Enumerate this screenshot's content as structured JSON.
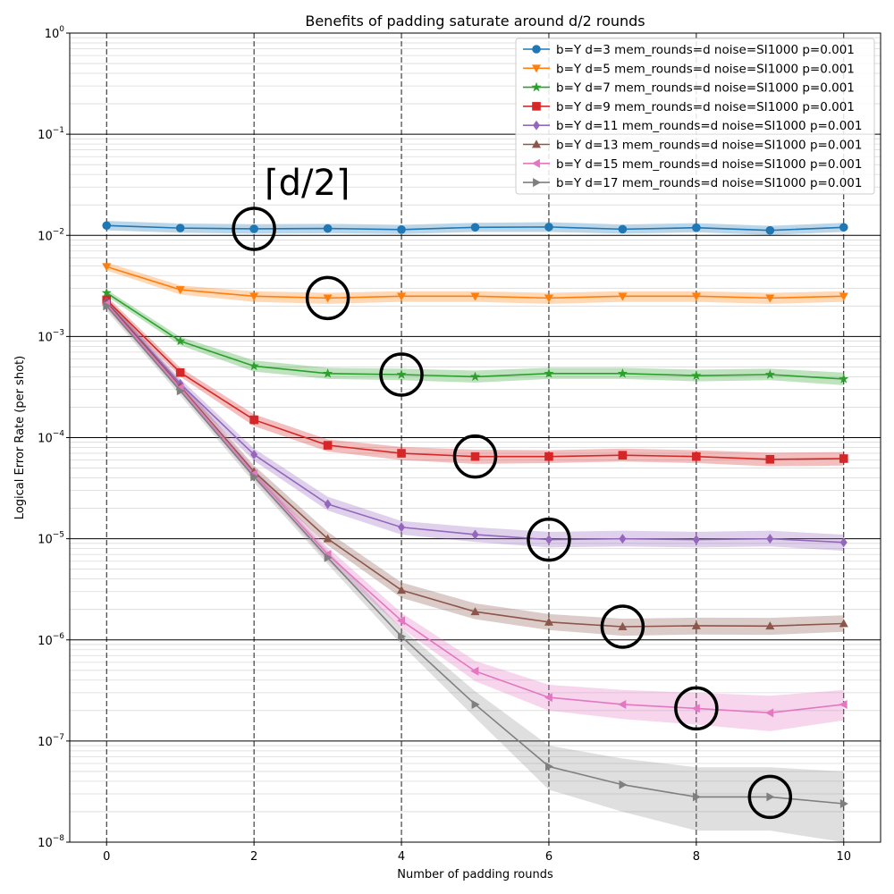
{
  "chart_data": {
    "type": "line",
    "title": "Benefits of padding saturate around d/2 rounds",
    "xlabel": "Number of padding rounds",
    "ylabel": "Logical Error Rate (per shot)",
    "x_ticks": [
      "0",
      "2",
      "4",
      "6",
      "8",
      "10"
    ],
    "y_ticks": [
      {
        "base": "10",
        "exp": "0"
      },
      {
        "base": "10",
        "exp": "−1"
      },
      {
        "base": "10",
        "exp": "−2"
      },
      {
        "base": "10",
        "exp": "−3"
      },
      {
        "base": "10",
        "exp": "−4"
      },
      {
        "base": "10",
        "exp": "−5"
      },
      {
        "base": "10",
        "exp": "−6"
      },
      {
        "base": "10",
        "exp": "−7"
      },
      {
        "base": "10",
        "exp": "−8"
      }
    ],
    "yscale": "log",
    "xlim": [
      -0.5,
      10.5
    ],
    "ylim": [
      1e-08,
      1
    ],
    "grid": "major and minor",
    "legend_position": "top-right",
    "annotation": "⌈d/2⌉",
    "x": [
      0,
      1,
      2,
      3,
      4,
      5,
      6,
      7,
      8,
      9,
      10
    ],
    "series": [
      {
        "name": "b=Y d=3 mem_rounds=d noise=SI1000 p=0.001",
        "color": "#1f77b4",
        "marker": "circle",
        "values": [
          0.0125,
          0.0118,
          0.0116,
          0.0117,
          0.0114,
          0.012,
          0.0121,
          0.0115,
          0.0119,
          0.0112,
          0.012
        ],
        "band_low": [
          0.0112,
          0.0106,
          0.0104,
          0.0105,
          0.0103,
          0.0108,
          0.0108,
          0.0104,
          0.0107,
          0.0101,
          0.0108
        ],
        "band_high": [
          0.0139,
          0.0131,
          0.0129,
          0.013,
          0.0127,
          0.0133,
          0.0135,
          0.0128,
          0.0132,
          0.0124,
          0.0133
        ],
        "circled_x": 2
      },
      {
        "name": "b=Y d=5 mem_rounds=d noise=SI1000 p=0.001",
        "color": "#ff7f0e",
        "marker": "triangle-down",
        "values": [
          0.0049,
          0.0029,
          0.0025,
          0.0024,
          0.0025,
          0.0025,
          0.0024,
          0.0025,
          0.0025,
          0.0024,
          0.0025
        ],
        "band_low": [
          0.0045,
          0.0026,
          0.0022,
          0.0021,
          0.0022,
          0.0022,
          0.0021,
          0.0022,
          0.0022,
          0.0021,
          0.0022
        ],
        "band_high": [
          0.0054,
          0.0032,
          0.0028,
          0.0027,
          0.0028,
          0.0028,
          0.0027,
          0.0028,
          0.0028,
          0.0027,
          0.0028
        ],
        "circled_x": 3
      },
      {
        "name": "b=Y d=7 mem_rounds=d noise=SI1000 p=0.001",
        "color": "#2ca02c",
        "marker": "star",
        "values": [
          0.0027,
          0.0009,
          0.00051,
          0.00043,
          0.00042,
          0.0004,
          0.00043,
          0.00043,
          0.00041,
          0.00042,
          0.00038
        ],
        "band_low": [
          0.0025,
          0.00082,
          0.00045,
          0.00038,
          0.00037,
          0.00035,
          0.00038,
          0.00038,
          0.00036,
          0.00037,
          0.00033
        ],
        "band_high": [
          0.0029,
          0.00099,
          0.00058,
          0.00049,
          0.00048,
          0.00046,
          0.00049,
          0.00049,
          0.00047,
          0.00048,
          0.00044
        ],
        "circled_x": 4
      },
      {
        "name": "b=Y d=9 mem_rounds=d noise=SI1000 p=0.001",
        "color": "#d62728",
        "marker": "square",
        "values": [
          0.0023,
          0.00044,
          0.00015,
          8.4e-05,
          7e-05,
          6.5e-05,
          6.5e-05,
          6.7e-05,
          6.5e-05,
          6.1e-05,
          6.2e-05
        ],
        "band_low": [
          0.0021,
          0.0004,
          0.00013,
          7.3e-05,
          6e-05,
          5.5e-05,
          5.6e-05,
          5.8e-05,
          5.6e-05,
          5.2e-05,
          5.3e-05
        ],
        "band_high": [
          0.0025,
          0.00049,
          0.00017,
          9.6e-05,
          8.1e-05,
          7.6e-05,
          7.5e-05,
          7.8e-05,
          7.5e-05,
          7.1e-05,
          7.2e-05
        ],
        "circled_x": 5
      },
      {
        "name": "b=Y d=11 mem_rounds=d noise=SI1000 p=0.001",
        "color": "#9467bd",
        "marker": "diamond",
        "values": [
          0.0022,
          0.00034,
          6.8e-05,
          2.2e-05,
          1.3e-05,
          1.1e-05,
          9.8e-06,
          1e-05,
          9.8e-06,
          1e-05,
          9.2e-06
        ],
        "band_low": [
          0.002,
          0.0003,
          5.9e-05,
          1.9e-05,
          1.1e-05,
          9.3e-06,
          8.2e-06,
          8.4e-06,
          8.2e-06,
          8.4e-06,
          7.6e-06
        ],
        "band_high": [
          0.0024,
          0.00038,
          7.8e-05,
          2.6e-05,
          1.5e-05,
          1.3e-05,
          1.17e-05,
          1.2e-05,
          1.17e-05,
          1.2e-05,
          1.1e-05
        ],
        "circled_x": 6
      },
      {
        "name": "b=Y d=13 mem_rounds=d noise=SI1000 p=0.001",
        "color": "#8c564b",
        "marker": "triangle-up",
        "values": [
          0.0022,
          0.00032,
          4.6e-05,
          1e-05,
          3.1e-06,
          1.9e-06,
          1.5e-06,
          1.35e-06,
          1.38e-06,
          1.37e-06,
          1.45e-06
        ],
        "band_low": [
          0.002,
          0.00029,
          4e-05,
          8.6e-06,
          2.6e-06,
          1.6e-06,
          1.25e-06,
          1.1e-06,
          1.13e-06,
          1.12e-06,
          1.2e-06
        ],
        "band_high": [
          0.0024,
          0.00036,
          5.3e-05,
          1.17e-05,
          3.7e-06,
          2.3e-06,
          1.8e-06,
          1.62e-06,
          1.66e-06,
          1.65e-06,
          1.75e-06
        ],
        "circled_x": 7
      },
      {
        "name": "b=Y d=15 mem_rounds=d noise=SI1000 p=0.001",
        "color": "#e377c2",
        "marker": "triangle-left",
        "values": [
          0.0021,
          0.00031,
          4.4e-05,
          7e-06,
          1.55e-06,
          4.9e-07,
          2.7e-07,
          2.3e-07,
          2.1e-07,
          1.9e-07,
          2.3e-07
        ],
        "band_low": [
          0.0019,
          0.00028,
          3.9e-05,
          6e-06,
          1.3e-06,
          3.9e-07,
          2e-07,
          1.65e-07,
          1.45e-07,
          1.25e-07,
          1.6e-07
        ],
        "band_high": [
          0.0023,
          0.00035,
          5e-05,
          8.2e-06,
          1.85e-06,
          6.2e-07,
          3.6e-07,
          3.2e-07,
          3e-07,
          2.8e-07,
          3.2e-07
        ],
        "circled_x": 8
      },
      {
        "name": "b=Y d=17 mem_rounds=d noise=SI1000 p=0.001",
        "color": "#7f7f7f",
        "marker": "triangle-right",
        "values": [
          0.002,
          0.00029,
          4.1e-05,
          6.5e-06,
          1.08e-06,
          2.3e-07,
          5.6e-08,
          3.7e-08,
          2.8e-08,
          2.8e-08,
          2.4e-08
        ],
        "band_low": [
          0.0018,
          0.00026,
          3.6e-05,
          5.6e-06,
          9e-07,
          1.7e-07,
          3.3e-08,
          2e-08,
          1.3e-08,
          1.3e-08,
          1e-08
        ],
        "band_high": [
          0.0022,
          0.00033,
          4.7e-05,
          7.6e-06,
          1.3e-06,
          3.1e-07,
          9e-08,
          6.7e-08,
          5.5e-08,
          5.5e-08,
          5e-08
        ],
        "circled_x": 9
      }
    ]
  }
}
